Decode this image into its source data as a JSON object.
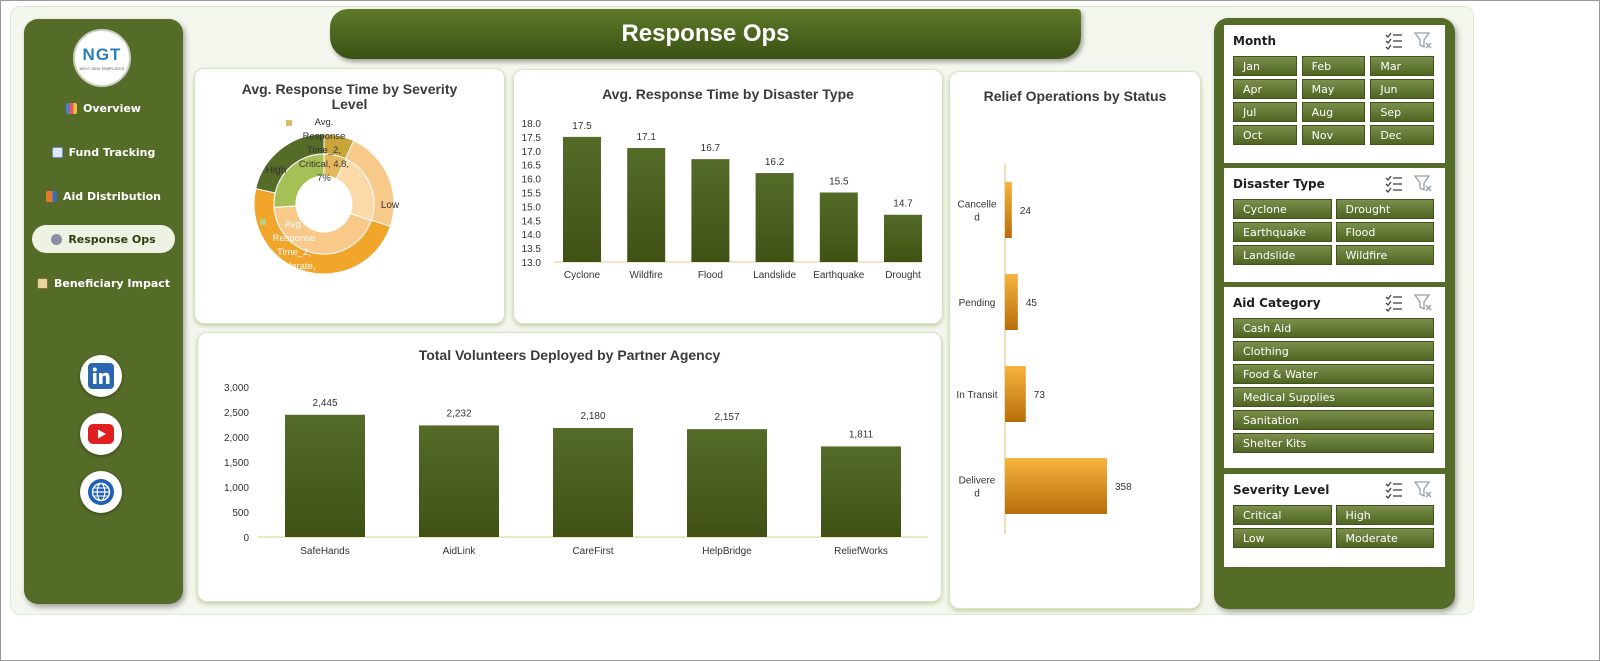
{
  "header": {
    "title": "Response Ops"
  },
  "logo": {
    "text": "NGT",
    "subtext": "NEXT GEN TEMPLATES"
  },
  "sidebar": {
    "items": [
      {
        "label": "Overview",
        "icon": "bar-chart-icon",
        "active": false
      },
      {
        "label": "Fund Tracking",
        "icon": "line-chart-icon",
        "active": false
      },
      {
        "label": "Aid Distribution",
        "icon": "truck-icon",
        "active": false
      },
      {
        "label": "Response Ops",
        "icon": "gear-icon",
        "active": true
      },
      {
        "label": "Beneficiary Impact",
        "icon": "clipboard-icon",
        "active": false
      }
    ],
    "social": [
      "linkedin-icon",
      "youtube-icon",
      "globe-icon"
    ]
  },
  "charts": {
    "severity": {
      "title": "Avg. Response Time by Severity Level",
      "labels": {
        "top": [
          "Avg.",
          "Response",
          "Time_2,",
          "Critical, 4.8,",
          "7%"
        ],
        "high": "High",
        "low": "Low",
        "bottom": [
          "Avg.",
          "Response",
          "Time_2,",
          "oderate,",
          "%"
        ]
      }
    },
    "disaster": {
      "title": "Avg. Response Time by Disaster Type"
    },
    "status": {
      "title": "Relief Operations by Status"
    },
    "volunteers": {
      "title": "Total Volunteers Deployed by Partner Agency"
    }
  },
  "chart_data": [
    {
      "type": "pie",
      "title": "Avg. Response Time by Severity Level",
      "categories": [
        "Critical",
        "High",
        "Low",
        "Moderate"
      ],
      "series": [
        {
          "values": [
            4.8,
            15.9,
            33.1,
            14.7
          ]
        },
        {
          "values": [
            5.0,
            16.0,
            30.0,
            18.0
          ]
        }
      ],
      "colors": [
        "#c9a437",
        "#f7c98a",
        "#f2a52b",
        "#556b28"
      ],
      "inner_colors": [
        "#e3b85d",
        "#fbd9a8",
        "#f9c98a",
        "#a5c155"
      ]
    },
    {
      "type": "bar",
      "title": "Avg. Response Time by Disaster Type",
      "categories": [
        "Cyclone",
        "Wildfire",
        "Flood",
        "Landslide",
        "Earthquake",
        "Drought"
      ],
      "values": [
        17.5,
        17.1,
        16.7,
        16.2,
        15.5,
        14.7
      ],
      "ylim": [
        13.0,
        18.0
      ],
      "yticks": [
        "18.0",
        "17.5",
        "17.0",
        "16.5",
        "16.0",
        "15.5",
        "15.0",
        "14.5",
        "14.0",
        "13.5",
        "13.0"
      ],
      "value_labels": [
        "17.5",
        "17.1",
        "16.7",
        "16.2",
        "15.5",
        "14.7"
      ]
    },
    {
      "type": "bar",
      "orientation": "horizontal",
      "title": "Relief Operations by Status",
      "categories": [
        "Cancelled",
        "Pending",
        "In Transit",
        "Delivered"
      ],
      "category_lines": [
        [
          "Cancelle",
          "d"
        ],
        [
          "Pending"
        ],
        [
          "In Transit"
        ],
        [
          "Delivere",
          "d"
        ]
      ],
      "values": [
        24,
        45,
        73,
        358
      ],
      "value_labels": [
        "24",
        "45",
        "73",
        "358"
      ]
    },
    {
      "type": "bar",
      "title": "Total Volunteers Deployed by Partner Agency",
      "categories": [
        "SafeHands",
        "AidLink",
        "CareFirst",
        "HelpBridge",
        "ReliefWorks"
      ],
      "values": [
        2445,
        2232,
        2180,
        2157,
        1811
      ],
      "ylim": [
        0,
        3000
      ],
      "yticks": [
        "3,000",
        "2,500",
        "2,000",
        "1,500",
        "1,000",
        "500",
        "0"
      ],
      "value_labels": [
        "2,445",
        "2,232",
        "2,180",
        "2,157",
        "1,811"
      ]
    }
  ],
  "slicers": [
    {
      "title": "Month",
      "items": [
        "Jan",
        "Feb",
        "Mar",
        "Apr",
        "May",
        "Jun",
        "Jul",
        "Aug",
        "Sep",
        "Oct",
        "Nov",
        "Dec"
      ],
      "cols": 3
    },
    {
      "title": "Disaster Type",
      "items": [
        "Cyclone",
        "Drought",
        "Earthquake",
        "Flood",
        "Landslide",
        "Wildfire"
      ],
      "cols": 2
    },
    {
      "title": "Aid Category",
      "items": [
        "Cash Aid",
        "Clothing",
        "Food & Water",
        "Medical Supplies",
        "Sanitation",
        "Shelter Kits"
      ],
      "cols": 1
    },
    {
      "title": "Severity Level",
      "items": [
        "Critical",
        "High",
        "Low",
        "Moderate"
      ],
      "cols": 2
    }
  ],
  "colors": {
    "olive": "#556b28",
    "bar_dark": "#3f5214",
    "bar_light": "#6b8536",
    "orange": "#f2a52b",
    "orange_dark": "#b86d0c"
  }
}
